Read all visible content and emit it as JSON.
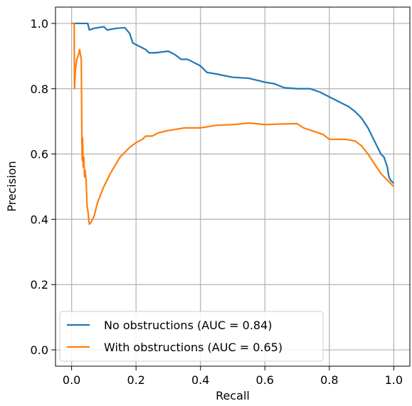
{
  "chart_data": {
    "type": "line",
    "xlabel": "Recall",
    "ylabel": "Precision",
    "xlim": [
      -0.05,
      1.05
    ],
    "ylim": [
      -0.05,
      1.05
    ],
    "xticks": [
      0.0,
      0.2,
      0.4,
      0.6,
      0.8,
      1.0
    ],
    "xtick_labels": [
      "0.0",
      "0.2",
      "0.4",
      "0.6",
      "0.8",
      "1.0"
    ],
    "yticks": [
      0.0,
      0.2,
      0.4,
      0.6,
      0.8,
      1.0
    ],
    "ytick_labels": [
      "0.0",
      "0.2",
      "0.4",
      "0.6",
      "0.8",
      "1.0"
    ],
    "grid": true,
    "legend_position": "lower-left",
    "series": [
      {
        "name": "No obstructions (AUC = 0.84)",
        "color": "#1f77b4",
        "x": [
          0.0,
          0.01,
          0.05,
          0.055,
          0.07,
          0.1,
          0.11,
          0.14,
          0.165,
          0.18,
          0.19,
          0.21,
          0.23,
          0.24,
          0.26,
          0.3,
          0.32,
          0.34,
          0.36,
          0.38,
          0.4,
          0.42,
          0.45,
          0.5,
          0.55,
          0.6,
          0.63,
          0.66,
          0.7,
          0.74,
          0.77,
          0.8,
          0.83,
          0.84,
          0.86,
          0.88,
          0.9,
          0.92,
          0.93,
          0.94,
          0.95,
          0.96,
          0.97,
          0.98,
          0.985,
          0.99,
          1.0
        ],
        "y": [
          1.0,
          1.0,
          1.0,
          0.98,
          0.985,
          0.99,
          0.98,
          0.985,
          0.987,
          0.97,
          0.94,
          0.93,
          0.92,
          0.91,
          0.91,
          0.915,
          0.905,
          0.89,
          0.89,
          0.88,
          0.87,
          0.85,
          0.845,
          0.835,
          0.832,
          0.82,
          0.815,
          0.803,
          0.8,
          0.8,
          0.79,
          0.775,
          0.76,
          0.755,
          0.745,
          0.73,
          0.71,
          0.68,
          0.66,
          0.64,
          0.62,
          0.6,
          0.59,
          0.56,
          0.53,
          0.52,
          0.51
        ]
      },
      {
        "name": "With obstructions (AUC = 0.65)",
        "color": "#ff7f0e",
        "x": [
          0.0,
          0.008,
          0.009,
          0.012,
          0.016,
          0.02,
          0.025,
          0.028,
          0.03,
          0.032,
          0.033,
          0.034,
          0.036,
          0.038,
          0.04,
          0.042,
          0.045,
          0.048,
          0.05,
          0.055,
          0.06,
          0.07,
          0.08,
          0.1,
          0.12,
          0.15,
          0.18,
          0.2,
          0.22,
          0.23,
          0.25,
          0.27,
          0.3,
          0.32,
          0.35,
          0.4,
          0.45,
          0.5,
          0.55,
          0.6,
          0.65,
          0.7,
          0.72,
          0.75,
          0.78,
          0.8,
          0.85,
          0.88,
          0.9,
          0.92,
          0.94,
          0.96,
          0.98,
          1.0
        ],
        "y": [
          1.0,
          1.0,
          0.8,
          0.86,
          0.89,
          0.9,
          0.92,
          0.9,
          0.89,
          0.63,
          0.58,
          0.65,
          0.56,
          0.59,
          0.53,
          0.55,
          0.52,
          0.44,
          0.43,
          0.385,
          0.39,
          0.41,
          0.45,
          0.5,
          0.54,
          0.59,
          0.62,
          0.635,
          0.645,
          0.655,
          0.655,
          0.665,
          0.672,
          0.675,
          0.68,
          0.68,
          0.688,
          0.69,
          0.695,
          0.69,
          0.692,
          0.693,
          0.68,
          0.67,
          0.66,
          0.645,
          0.645,
          0.64,
          0.625,
          0.6,
          0.57,
          0.54,
          0.52,
          0.5
        ]
      }
    ]
  }
}
